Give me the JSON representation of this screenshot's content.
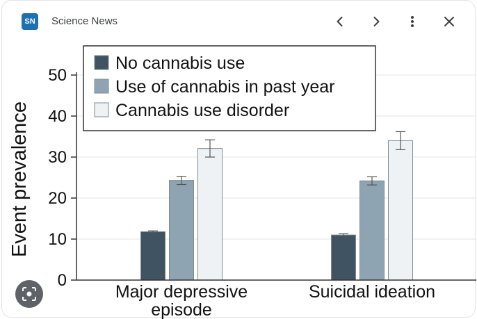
{
  "header": {
    "source_logo": "SN",
    "source_name": "Science News",
    "icons": {
      "prev": "chevron-left-icon",
      "next": "chevron-right-icon",
      "more": "more-vert-icon",
      "close": "close-icon",
      "lens": "lens-icon"
    }
  },
  "colors": {
    "series": [
      "#3f5361",
      "#8fa4b2",
      "#eef2f5"
    ],
    "axis": "#333333",
    "grid": "#e6e6e6",
    "logo": "#1f6fb3"
  },
  "chart_data": {
    "type": "bar",
    "title": "",
    "xlabel": "",
    "ylabel": "Event prevalence",
    "ylim": [
      0,
      50
    ],
    "yticks": [
      "0",
      "10",
      "20",
      "30",
      "40",
      "50"
    ],
    "grid": true,
    "legend": "top-left",
    "categories": [
      {
        "lines": [
          "Major depressive",
          "episode"
        ]
      },
      {
        "lines": [
          "Suicidal ideation"
        ]
      }
    ],
    "series": [
      {
        "name": "No cannabis use",
        "values": [
          11.8,
          11.0
        ],
        "errors": [
          0.2,
          0.3
        ]
      },
      {
        "name": "Use of cannabis in past year",
        "values": [
          24.3,
          24.2
        ],
        "errors": [
          1.0,
          1.0
        ]
      },
      {
        "name": "Cannabis use disorder",
        "values": [
          32.1,
          34.0
        ],
        "errors": [
          2.1,
          2.2
        ]
      }
    ]
  }
}
